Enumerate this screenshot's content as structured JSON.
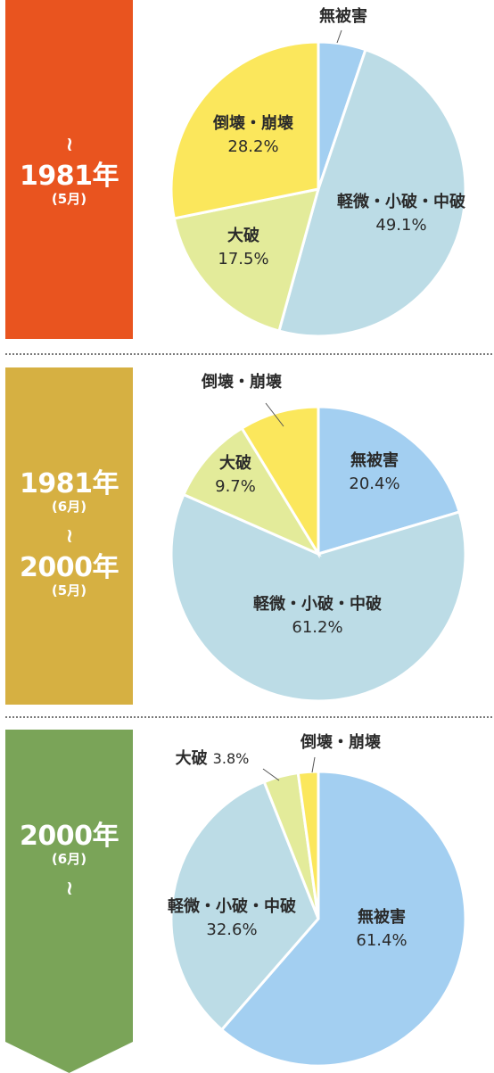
{
  "periods": [
    {
      "start_mark": "~",
      "year": "1981年",
      "month": "(5月)"
    },
    {
      "year_a": "1981年",
      "month_a": "(6月)",
      "mid_mark": "~",
      "year_b": "2000年",
      "month_b": "(5月)"
    },
    {
      "year": "2000年",
      "month": "(6月)",
      "end_mark": "~"
    }
  ],
  "chart_data": [
    {
      "type": "pie",
      "period": "〜1981年(5月)",
      "slices": [
        {
          "name": "無被害",
          "value": 5.2,
          "color": "#a3cff1"
        },
        {
          "name": "軽微・小破・中破",
          "value": 49.1,
          "color": "#bcdce6"
        },
        {
          "name": "大破",
          "value": 17.5,
          "color": "#e3eb9a"
        },
        {
          "name": "倒壊・崩壊",
          "value": 28.2,
          "color": "#fbe75c"
        }
      ],
      "labels": [
        {
          "name": "無被害"
        },
        {
          "name": "軽微・小破・中破",
          "value_text": "49.1%"
        },
        {
          "name": "大破",
          "value_text": "17.5%"
        },
        {
          "name": "倒壊・崩壊",
          "value_text": "28.2%"
        }
      ]
    },
    {
      "type": "pie",
      "period": "1981年(6月)〜2000年(5月)",
      "slices": [
        {
          "name": "無被害",
          "value": 20.4,
          "color": "#a3cff1"
        },
        {
          "name": "軽微・小破・中破",
          "value": 61.2,
          "color": "#bcdce6"
        },
        {
          "name": "大破",
          "value": 9.7,
          "color": "#e3eb9a"
        },
        {
          "name": "倒壊・崩壊",
          "value": 8.7,
          "color": "#fbe75c"
        }
      ],
      "labels": [
        {
          "name": "無被害",
          "value_text": "20.4%"
        },
        {
          "name": "軽微・小破・中破",
          "value_text": "61.2%"
        },
        {
          "name": "大破",
          "value_text": "9.7%"
        },
        {
          "name": "倒壊・崩壊"
        }
      ]
    },
    {
      "type": "pie",
      "period": "2000年(6月)〜",
      "slices": [
        {
          "name": "無被害",
          "value": 61.4,
          "color": "#a3cff1"
        },
        {
          "name": "軽微・小破・中破",
          "value": 32.6,
          "color": "#bcdce6"
        },
        {
          "name": "大破",
          "value": 3.8,
          "color": "#e3eb9a"
        },
        {
          "name": "倒壊・崩壊",
          "value": 2.2,
          "color": "#fbe75c"
        }
      ],
      "labels": [
        {
          "name": "無被害",
          "value_text": "61.4%"
        },
        {
          "name": "軽微・小破・中破",
          "value_text": "32.6%"
        },
        {
          "name": "大破",
          "value_text": "3.8%",
          "inline": true
        },
        {
          "name": "倒壊・崩壊"
        }
      ]
    }
  ]
}
